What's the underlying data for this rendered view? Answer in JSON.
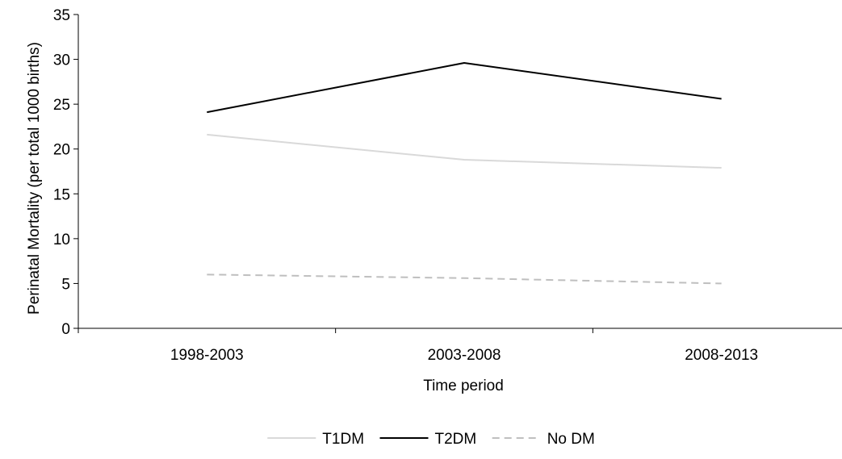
{
  "chart_data": {
    "type": "line",
    "xlabel": "Time period",
    "ylabel": "Perinatal Mortality (per total 1000 births)",
    "categories": [
      "1998-2003",
      "2003-2008",
      "2008-2013"
    ],
    "ylim": [
      0,
      35
    ],
    "yticks": [
      0,
      5,
      10,
      15,
      20,
      25,
      30,
      35
    ],
    "grid": false,
    "legend_position": "bottom",
    "series": [
      {
        "name": "T1DM",
        "values": [
          21.6,
          18.8,
          17.9
        ],
        "color": "#d9d9d9",
        "dash": "solid"
      },
      {
        "name": "T2DM",
        "values": [
          24.1,
          29.6,
          25.6
        ],
        "color": "#000000",
        "dash": "solid"
      },
      {
        "name": "No DM",
        "values": [
          6.0,
          5.6,
          5.0
        ],
        "color": "#bfbfbf",
        "dash": "dashed"
      }
    ]
  }
}
